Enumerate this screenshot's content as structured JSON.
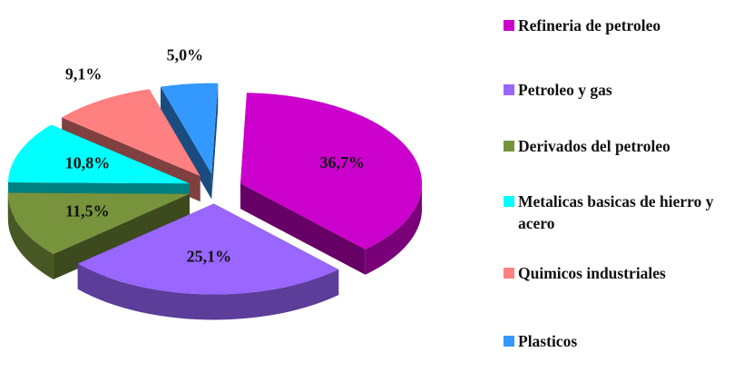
{
  "chart_data": {
    "type": "pie",
    "categories": [
      "Refineria de petroleo",
      "Petroleo y gas",
      "Derivados del petroleo",
      "Metalicas basicas de hierro y acero",
      "Quimicos industriales",
      "Plasticos"
    ],
    "values": [
      36.7,
      25.1,
      11.5,
      10.8,
      9.1,
      5.0
    ],
    "value_labels": [
      "36,7%",
      "25,1%",
      "11,5%",
      "10,8%",
      "9,1%",
      "5,0%"
    ],
    "colors": [
      "#cc00cc",
      "#9966ff",
      "#77933c",
      "#00ffff",
      "#ff8080",
      "#3399ff"
    ],
    "legend": "right"
  }
}
